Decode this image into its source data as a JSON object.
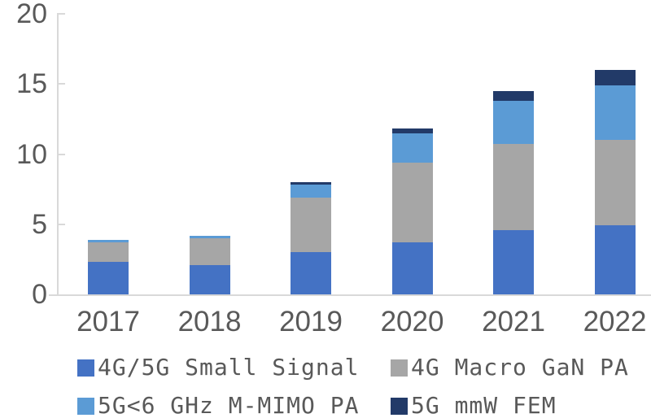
{
  "chart_data": {
    "type": "bar",
    "stacked": true,
    "title": "",
    "xlabel": "",
    "ylabel": "",
    "categories": [
      "2017",
      "2018",
      "2019",
      "2020",
      "2021",
      "2022"
    ],
    "series": [
      {
        "name": "4G/5G Small Signal",
        "color": "#4472C4",
        "values": [
          2.3,
          2.1,
          3.0,
          3.7,
          4.6,
          4.9
        ]
      },
      {
        "name": "4G Macro GaN PA",
        "color": "#A6A6A6",
        "values": [
          1.4,
          1.9,
          3.9,
          5.7,
          6.1,
          6.1
        ]
      },
      {
        "name": "5G<6 GHz M-MIMO PA",
        "color": "#5B9BD5",
        "values": [
          0.2,
          0.2,
          0.9,
          2.1,
          3.1,
          3.9
        ]
      },
      {
        "name": "5G mmW FEM",
        "color": "#223A68",
        "values": [
          0.0,
          0.0,
          0.2,
          0.3,
          0.7,
          1.1
        ]
      }
    ],
    "totals": [
      3.9,
      4.2,
      8.0,
      11.8,
      14.5,
      16.0
    ],
    "ylim": [
      0,
      20
    ],
    "yticks": [
      0,
      5,
      10,
      15,
      20
    ],
    "grid": false,
    "legend_position": "bottom"
  },
  "style": {
    "axis_color": "#D9D9D9",
    "text_color": "#595959",
    "background": "#FFFFFF"
  }
}
